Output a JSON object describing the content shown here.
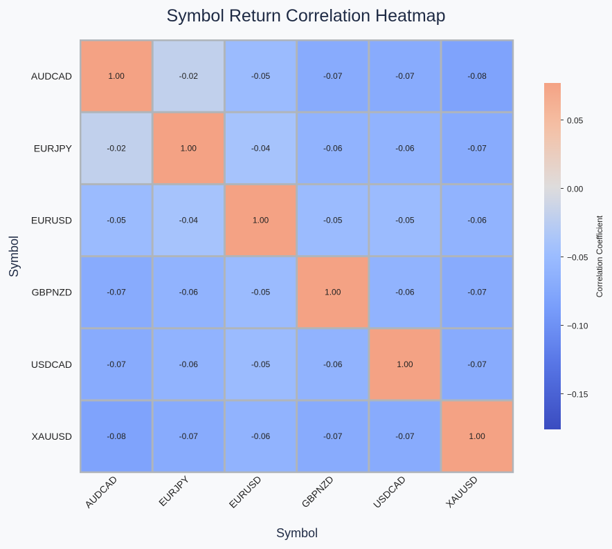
{
  "chart_data": {
    "type": "heatmap",
    "title": "Symbol Return Correlation Heatmap",
    "xlabel": "Symbol",
    "ylabel": "Symbol",
    "x_categories": [
      "AUDCAD",
      "EURJPY",
      "EURUSD",
      "GBPNZD",
      "USDCAD",
      "XAUUSD"
    ],
    "y_categories": [
      "AUDCAD",
      "EURJPY",
      "EURUSD",
      "GBPNZD",
      "USDCAD",
      "XAUUSD"
    ],
    "values": [
      [
        1.0,
        -0.02,
        -0.05,
        -0.07,
        -0.07,
        -0.08
      ],
      [
        -0.02,
        1.0,
        -0.04,
        -0.06,
        -0.06,
        -0.07
      ],
      [
        -0.05,
        -0.04,
        1.0,
        -0.05,
        -0.05,
        -0.06
      ],
      [
        -0.07,
        -0.06,
        -0.05,
        1.0,
        -0.06,
        -0.07
      ],
      [
        -0.07,
        -0.06,
        -0.05,
        -0.06,
        1.0,
        -0.07
      ],
      [
        -0.08,
        -0.07,
        -0.06,
        -0.07,
        -0.07,
        1.0
      ]
    ],
    "colormap": "coolwarm",
    "center": 0,
    "colorbar": {
      "label": "Correlation Coefficient",
      "range": [
        -0.176,
        0.077
      ],
      "ticks": [
        0.05,
        0.0,
        -0.05,
        -0.1,
        -0.15
      ],
      "tick_labels": [
        "0.05",
        "0.00",
        "−0.05",
        "−0.10",
        "−0.15"
      ]
    },
    "grid_color": "#b0b5ba"
  }
}
